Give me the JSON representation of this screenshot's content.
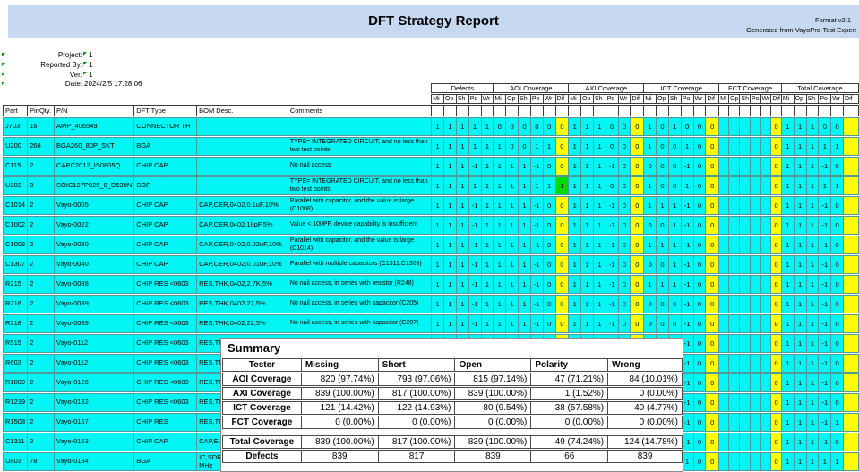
{
  "colors": {
    "banner_bg": "#c6d9f1",
    "cell_bg": "#00f5f5",
    "dif_highlight": "#ffff00",
    "pass_highlight": "#00dc00",
    "grid_border": "#4f9a9a",
    "note_mark": "#00a000"
  },
  "banner": {
    "title": "DFT Strategy Report",
    "format_label": "Format v2.1",
    "generated_label": "Generated from VayoPro-Test Expert"
  },
  "meta": {
    "rows": [
      {
        "label": "Project:",
        "value": "1",
        "value_mark": true
      },
      {
        "label": "Reported By:",
        "value": "1",
        "value_mark": true
      },
      {
        "label": "Ver:",
        "value": "1",
        "value_mark": true
      },
      {
        "label": "Date:",
        "value": "2024/2/5 17:28:06",
        "value_mark": false
      }
    ]
  },
  "table": {
    "left_headers": [
      "Part",
      "PinQty.",
      "P/N",
      "DFT Type",
      "BOM Desc.",
      "Comments"
    ],
    "groups": [
      {
        "label": "Defects",
        "cols": [
          "Mi",
          "Op",
          "Sh",
          "Po",
          "Wr"
        ]
      },
      {
        "label": "AOI Coverage",
        "cols": [
          "Mi",
          "Op",
          "Sh",
          "Po",
          "Wr",
          "Dif"
        ]
      },
      {
        "label": "AXI Coverage",
        "cols": [
          "Mi",
          "Op",
          "Sh",
          "Po",
          "Wr",
          "Dif"
        ]
      },
      {
        "label": "ICT Coverage",
        "cols": [
          "Mi",
          "Op",
          "Sh",
          "Po",
          "Wr",
          "Dif"
        ]
      },
      {
        "label": "FCT Coverage",
        "cols": [
          "Mi",
          "Op",
          "Sh",
          "Po",
          "Wr",
          "Dif"
        ]
      },
      {
        "label": "Total Coverage",
        "cols": [
          "Mi",
          "Op",
          "Sh",
          "Po",
          "Wr",
          "Dif"
        ]
      }
    ],
    "rows": [
      {
        "part": "J703",
        "pin": "16",
        "pn": "AMP_406549",
        "dft": "CONNECTOR TH",
        "bom": "",
        "comment": "",
        "cells": [
          "1",
          "1",
          "1",
          "1",
          "1",
          "0",
          "0",
          "0",
          "0",
          "0",
          "0",
          "1",
          "1",
          "1",
          "0",
          "0",
          "0",
          "1",
          "0",
          "1",
          "0",
          "0",
          "0",
          "",
          "",
          "",
          "",
          "",
          "0",
          "1",
          "1",
          "1",
          "0",
          "0",
          ""
        ]
      },
      {
        "part": "U200",
        "pin": "266",
        "pn": "BGA260_80P_SKT",
        "dft": "BGA",
        "bom": "",
        "comment": "TYPE= INTEGRATED CIRCUIT, and no less than two test points",
        "cells": [
          "1",
          "1",
          "1",
          "1",
          "1",
          "1",
          "0",
          "0",
          "1",
          "1",
          "0",
          "1",
          "1",
          "1",
          "0",
          "0",
          "0",
          "1",
          "0",
          "0",
          "1",
          "0",
          "0",
          "",
          "",
          "",
          "",
          "",
          "0",
          "1",
          "1",
          "1",
          "1",
          "1",
          ""
        ]
      },
      {
        "part": "C115",
        "pin": "2",
        "pn": "CAPC2012_IS0805Q",
        "dft": "CHIP CAP",
        "bom": "",
        "comment": "No nail access",
        "cells": [
          "1",
          "1",
          "1",
          "-1",
          "1",
          "1",
          "1",
          "1",
          "-1",
          "0",
          "0",
          "1",
          "1",
          "1",
          "-1",
          "0",
          "0",
          "0",
          "0",
          "0",
          "-1",
          "0",
          "0",
          "",
          "",
          "",
          "",
          "",
          "0",
          "1",
          "1",
          "1",
          "-1",
          "0",
          ""
        ]
      },
      {
        "part": "U203",
        "pin": "8",
        "pn": "SOIC127P825_8_D530N",
        "dft": "SOP",
        "bom": "",
        "comment": "TYPE= INTEGRATED CIRCUIT, and no less than two test points",
        "green": 10,
        "cells": [
          "1",
          "1",
          "1",
          "1",
          "1",
          "1",
          "1",
          "1",
          "1",
          "1",
          "1",
          "1",
          "1",
          "1",
          "0",
          "0",
          "0",
          "1",
          "0",
          "0",
          "1",
          "0",
          "0",
          "",
          "",
          "",
          "",
          "",
          "0",
          "1",
          "1",
          "1",
          "1",
          "1",
          ""
        ]
      },
      {
        "part": "C1014",
        "pin": "2",
        "pn": "Vayo-0005",
        "dft": "CHIP CAP",
        "bom": "CAP,CER,0402,0.1uF,10%",
        "comment": "Parallel with capacitor, and the value is large  (C1008)",
        "cells": [
          "1",
          "1",
          "1",
          "-1",
          "1",
          "1",
          "1",
          "1",
          "-1",
          "0",
          "0",
          "1",
          "1",
          "1",
          "-1",
          "0",
          "0",
          "1",
          "1",
          "1",
          "-1",
          "0",
          "0",
          "",
          "",
          "",
          "",
          "",
          "0",
          "1",
          "1",
          "1",
          "-1",
          "0",
          ""
        ]
      },
      {
        "part": "C1002",
        "pin": "2",
        "pn": "Vayo-0022",
        "dft": "CHIP CAP",
        "bom": "CAP,CER,0402,18pF,5%",
        "comment": "Value < 100PF, device capability is insufficient",
        "cells": [
          "1",
          "1",
          "1",
          "-1",
          "1",
          "1",
          "1",
          "1",
          "-1",
          "0",
          "0",
          "1",
          "1",
          "1",
          "-1",
          "0",
          "0",
          "0",
          "0",
          "1",
          "-1",
          "0",
          "0",
          "",
          "",
          "",
          "",
          "",
          "0",
          "1",
          "1",
          "1",
          "-1",
          "0",
          ""
        ]
      },
      {
        "part": "C1008",
        "pin": "2",
        "pn": "Vayo-0030",
        "dft": "CHIP CAP",
        "bom": "CAP,CER,0402,0.22uF,10%",
        "comment": "Parallel with capacitor, and the value is large  (C1014)",
        "cells": [
          "1",
          "1",
          "1",
          "-1",
          "1",
          "1",
          "1",
          "1",
          "-1",
          "0",
          "0",
          "1",
          "1",
          "1",
          "-1",
          "0",
          "0",
          "1",
          "1",
          "1",
          "-1",
          "0",
          "0",
          "",
          "",
          "",
          "",
          "",
          "0",
          "1",
          "1",
          "1",
          "-1",
          "0",
          ""
        ]
      },
      {
        "part": "C1307",
        "pin": "2",
        "pn": "Vayo-0040",
        "dft": "CHIP CAP",
        "bom": "CAP,CER,0402,0.01uF,10%",
        "comment": "Parallel with multiple capacitors  (C1311,C1308)",
        "cells": [
          "1",
          "1",
          "1",
          "-1",
          "1",
          "1",
          "1",
          "1",
          "-1",
          "0",
          "0",
          "1",
          "1",
          "1",
          "-1",
          "0",
          "0",
          "0",
          "0",
          "1",
          "-1",
          "0",
          "0",
          "",
          "",
          "",
          "",
          "",
          "0",
          "1",
          "1",
          "1",
          "-1",
          "0",
          ""
        ]
      },
      {
        "part": "R215",
        "pin": "2",
        "pn": "Vayo-0088",
        "dft": "CHIP RES <0603",
        "bom": "RES,THK,0402,2.7K,5%",
        "comment": "No nail access, in series with resistor (R248)",
        "cells": [
          "1",
          "1",
          "1",
          "-1",
          "1",
          "1",
          "1",
          "1",
          "-1",
          "0",
          "0",
          "1",
          "1",
          "1",
          "-1",
          "0",
          "0",
          "1",
          "1",
          "1",
          "-1",
          "0",
          "0",
          "",
          "",
          "",
          "",
          "",
          "0",
          "1",
          "1",
          "1",
          "-1",
          "0",
          ""
        ]
      },
      {
        "part": "R216",
        "pin": "2",
        "pn": "Vayo-0089",
        "dft": "CHIP RES <0603",
        "bom": "RES,THK,0402,22,5%",
        "comment": "No nail access, in series with capacitor (C205)",
        "cells": [
          "1",
          "1",
          "1",
          "-1",
          "1",
          "1",
          "1",
          "1",
          "-1",
          "0",
          "0",
          "1",
          "1",
          "1",
          "-1",
          "0",
          "0",
          "0",
          "0",
          "0",
          "-1",
          "0",
          "0",
          "",
          "",
          "",
          "",
          "",
          "0",
          "1",
          "1",
          "1",
          "-1",
          "0",
          ""
        ]
      },
      {
        "part": "R218",
        "pin": "2",
        "pn": "Vayo-0089",
        "dft": "CHIP RES <0603",
        "bom": "RES,THK,0402,22,5%",
        "comment": "No nail access, in series with capacitor (C207)",
        "cells": [
          "1",
          "1",
          "1",
          "-1",
          "1",
          "1",
          "1",
          "1",
          "-1",
          "0",
          "0",
          "1",
          "1",
          "1",
          "-1",
          "0",
          "0",
          "0",
          "0",
          "0",
          "-1",
          "0",
          "0",
          "",
          "",
          "",
          "",
          "",
          "0",
          "1",
          "1",
          "1",
          "-1",
          "0",
          ""
        ]
      },
      {
        "part": "R515",
        "pin": "2",
        "pn": "Vayo-0112",
        "dft": "CHIP RES <0603",
        "bom": "RES,THK,0402,2.7K,5%",
        "comment": "No nail access, in series with resistor(R516)",
        "cells": [
          "1",
          "1",
          "1",
          "-1",
          "1",
          "1",
          "1",
          "1",
          "-1",
          "0",
          "0",
          "1",
          "1",
          "1",
          "-1",
          "0",
          "0",
          "1",
          "1",
          "1",
          "-1",
          "0",
          "0",
          "",
          "",
          "",
          "",
          "",
          "0",
          "1",
          "1",
          "1",
          "-1",
          "0",
          ""
        ]
      },
      {
        "part": "R603",
        "pin": "2",
        "pn": "Vayo-0112",
        "dft": "CHIP RES <0603",
        "bom": "RES,THK",
        "comment": "",
        "cells": [
          "",
          "",
          "",
          "",
          "",
          "",
          "",
          "",
          "",
          "",
          "",
          "",
          "",
          "",
          "",
          "",
          "",
          "",
          "",
          "1",
          "-1",
          "0",
          "0",
          "",
          "",
          "",
          "",
          "",
          "0",
          "1",
          "1",
          "1",
          "-1",
          "0",
          ""
        ]
      },
      {
        "part": "R1009",
        "pin": "2",
        "pn": "Vayo-0126",
        "dft": "CHIP RES <0603",
        "bom": "RES,THK",
        "comment": "",
        "cells": [
          "",
          "",
          "",
          "",
          "",
          "",
          "",
          "",
          "",
          "",
          "",
          "",
          "",
          "",
          "",
          "",
          "",
          "",
          "",
          "1",
          "-1",
          "0",
          "0",
          "",
          "",
          "",
          "",
          "",
          "0",
          "1",
          "1",
          "1",
          "-1",
          "0",
          ""
        ]
      },
      {
        "part": "R1219",
        "pin": "2",
        "pn": "Vayo-0132",
        "dft": "CHIP RES <0603",
        "bom": "RES,THK",
        "comment": "",
        "cells": [
          "",
          "",
          "",
          "",
          "",
          "",
          "",
          "",
          "",
          "",
          "",
          "",
          "",
          "",
          "",
          "",
          "",
          "",
          "",
          "1",
          "-1",
          "0",
          "0",
          "",
          "",
          "",
          "",
          "",
          "0",
          "1",
          "1",
          "1",
          "-1",
          "0",
          ""
        ]
      },
      {
        "part": "R1508",
        "pin": "2",
        "pn": "Vayo-0157",
        "dft": "CHIP RES",
        "bom": "RES,THK",
        "comment": "",
        "cells": [
          "",
          "",
          "",
          "",
          "",
          "",
          "",
          "",
          "",
          "",
          "",
          "",
          "",
          "",
          "",
          "",
          "",
          "",
          "",
          "0",
          "-1",
          "0",
          "0",
          "",
          "",
          "",
          "",
          "",
          "0",
          "1",
          "1",
          "1",
          "-1",
          "1",
          ""
        ]
      },
      {
        "part": "C1311",
        "pin": "2",
        "pn": "Vayo-0163",
        "dft": "CHIP CAP",
        "bom": "CAP,ELE",
        "comment": "",
        "cells": [
          "",
          "",
          "",
          "",
          "",
          "",
          "",
          "",
          "",
          "",
          "",
          "",
          "",
          "",
          "",
          "",
          "",
          "",
          "",
          "1",
          "-1",
          "0",
          "0",
          "",
          "",
          "",
          "",
          "",
          "0",
          "1",
          "1",
          "1",
          "-1",
          "0",
          ""
        ]
      },
      {
        "part": "U803",
        "pin": "78",
        "pn": "Vayo-0184",
        "dft": "BGA",
        "bom": "IC,SDRA\nMHz",
        "comment": "",
        "cells": [
          "",
          "",
          "",
          "",
          "",
          "",
          "",
          "",
          "",
          "",
          "",
          "",
          "",
          "",
          "",
          "",
          "",
          "",
          "",
          "0",
          "1",
          "0",
          "0",
          "",
          "",
          "",
          "",
          "",
          "0",
          "1",
          "1",
          "1",
          "1",
          "1",
          ""
        ]
      }
    ]
  },
  "summary": {
    "title": "Summary",
    "headers": [
      "Tester",
      "Missing",
      "Short",
      "Open",
      "Polarity",
      "Wrong"
    ],
    "rows": [
      {
        "label": "AOI Coverage",
        "values": [
          "820 (97.74%)",
          "793 (97.06%)",
          "815 (97.14%)",
          "47 (71.21%)",
          "84 (10.01%)"
        ]
      },
      {
        "label": "AXI Coverage",
        "values": [
          "839 (100.00%)",
          "817 (100.00%)",
          "839 (100.00%)",
          "1 (1.52%)",
          "0 (0.00%)"
        ]
      },
      {
        "label": "ICT Coverage",
        "values": [
          "121 (14.42%)",
          "122 (14.93%)",
          "80 (9.54%)",
          "38 (57.58%)",
          "40 (4.77%)"
        ]
      },
      {
        "label": "FCT Coverage",
        "values": [
          "0 (0.00%)",
          "0 (0.00%)",
          "0 (0.00%)",
          "0 (0.00%)",
          "0 (0.00%)"
        ]
      }
    ],
    "total_row": {
      "label": "Total Coverage",
      "values": [
        "839 (100.00%)",
        "817 (100.00%)",
        "839 (100.00%)",
        "49 (74.24%)",
        "124 (14.78%)"
      ]
    },
    "defects_row": {
      "label": "Defects",
      "values": [
        "839",
        "817",
        "839",
        "66",
        "839"
      ]
    }
  }
}
